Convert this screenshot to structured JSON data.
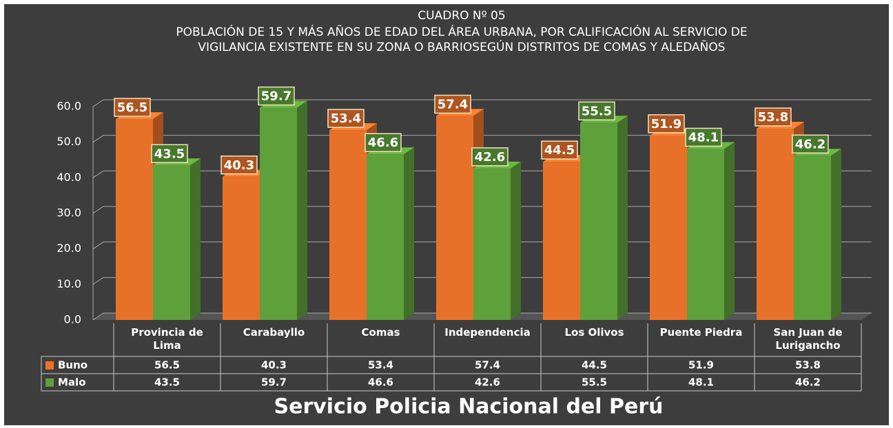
{
  "chart_data": {
    "type": "bar",
    "title": "CUADRO Nº 05",
    "subtitle": "POBLACIÓN DE 15 Y MÁS AÑOS DE EDAD DEL ÁREA URBANA, POR CALIFICACIÓN AL SERVICIO DE VIGILANCIA EXISTENTE EN SU ZONA O BARRIOSEGÚN DISTRITOS DE COMAS Y ALEDAÑOS",
    "x_label": "Servicio Policia Nacional del Perú",
    "categories": [
      "Provincia de Lima",
      "Carabayllo",
      "Comas",
      "Independencia",
      "Los Olivos",
      "Puente Piedra",
      "San Juan de Lurigancho"
    ],
    "series": [
      {
        "name": "Buno",
        "color": "#e8712a",
        "values": [
          56.5,
          40.3,
          53.4,
          57.4,
          44.5,
          51.9,
          53.8
        ]
      },
      {
        "name": "Malo",
        "color": "#5ea03a",
        "values": [
          43.5,
          59.7,
          46.6,
          42.6,
          55.5,
          48.1,
          46.2
        ]
      }
    ],
    "ylim": [
      0,
      60
    ],
    "yticks": [
      {
        "value": 0,
        "label": "0.0"
      },
      {
        "value": 10,
        "label": "10.0"
      },
      {
        "value": 20,
        "label": "20.0"
      },
      {
        "value": 30,
        "label": "30.0"
      },
      {
        "value": 40,
        "label": "40.0"
      },
      {
        "value": 50,
        "label": "50.0"
      },
      {
        "value": 60,
        "label": "60.0"
      }
    ],
    "grid": true
  }
}
